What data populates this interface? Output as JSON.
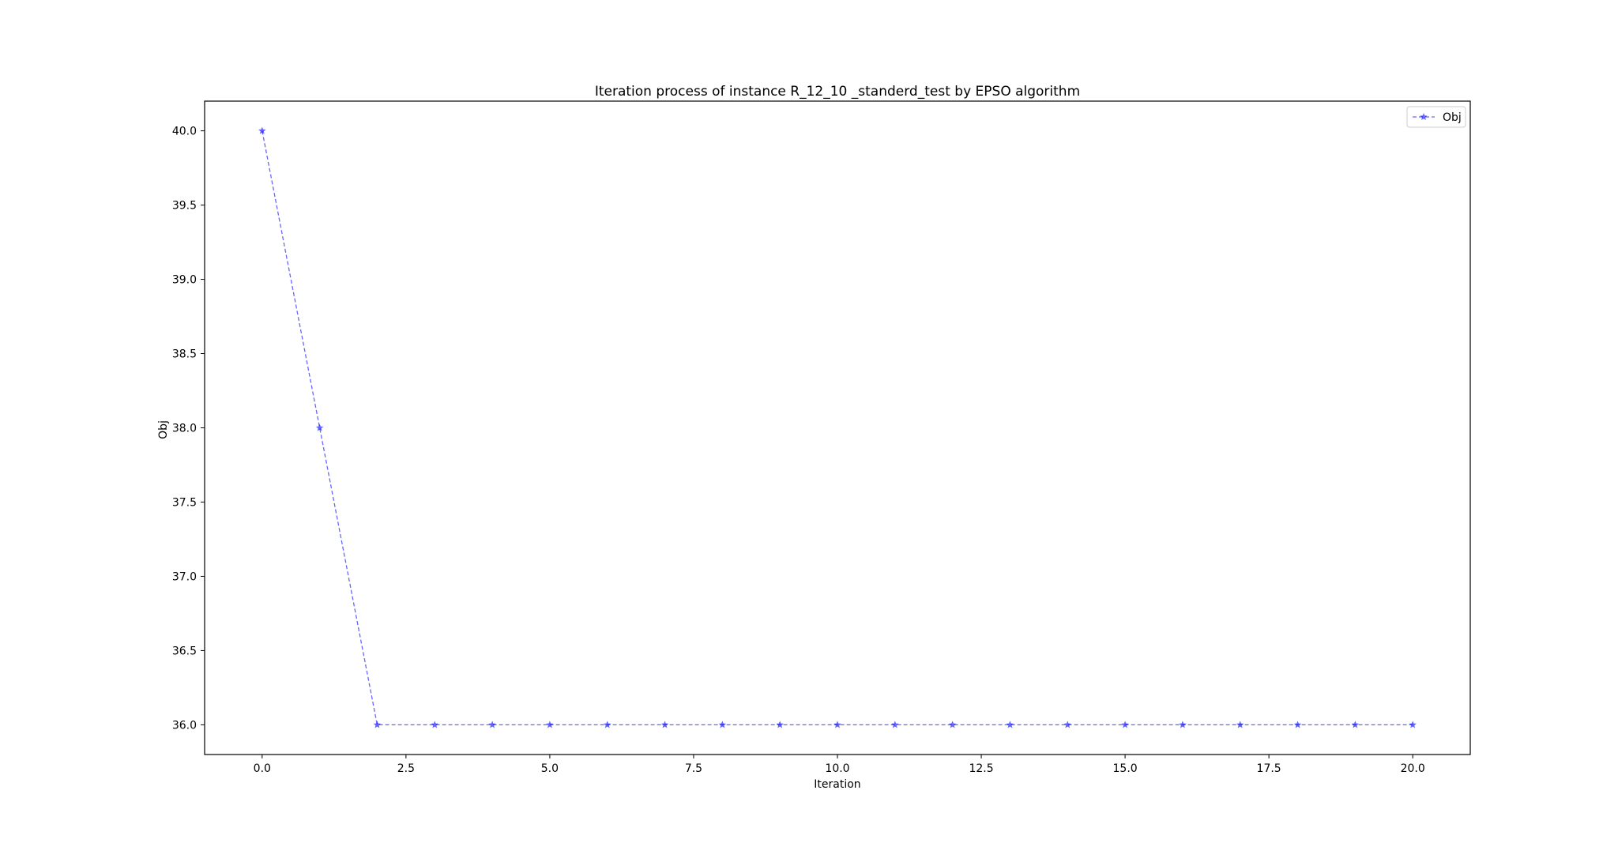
{
  "chart_data": {
    "type": "line",
    "title": "Iteration process of instance R_12_10 _standerd_test by EPSO algorithm",
    "xlabel": "Iteration",
    "ylabel": "Obj",
    "xlim": [
      -1.0,
      21.0
    ],
    "ylim": [
      35.8,
      40.2
    ],
    "xticks": [
      0.0,
      2.5,
      5.0,
      7.5,
      10.0,
      12.5,
      15.0,
      17.5,
      20.0
    ],
    "xtick_labels": [
      "0.0",
      "2.5",
      "5.0",
      "7.5",
      "10.0",
      "12.5",
      "15.0",
      "17.5",
      "20.0"
    ],
    "yticks": [
      36.0,
      36.5,
      37.0,
      37.5,
      38.0,
      38.5,
      39.0,
      39.5,
      40.0
    ],
    "ytick_labels": [
      "36.0",
      "36.5",
      "37.0",
      "37.5",
      "38.0",
      "38.5",
      "39.0",
      "39.5",
      "40.0"
    ],
    "grid": false,
    "legend_position": "top-right",
    "series": [
      {
        "name": "Obj",
        "color": "#0000ff",
        "line_style": "dashed",
        "marker": "star",
        "x": [
          0,
          1,
          2,
          3,
          4,
          5,
          6,
          7,
          8,
          9,
          10,
          11,
          12,
          13,
          14,
          15,
          16,
          17,
          18,
          19,
          20
        ],
        "y": [
          40,
          38,
          36,
          36,
          36,
          36,
          36,
          36,
          36,
          36,
          36,
          36,
          36,
          36,
          36,
          36,
          36,
          36,
          36,
          36,
          36
        ]
      }
    ]
  }
}
